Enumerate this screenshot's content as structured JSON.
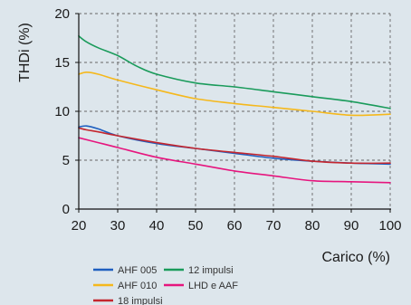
{
  "chart_data": {
    "type": "line",
    "xlabel": "Carico (%)",
    "ylabel": "THDi (%)",
    "xlim": [
      20,
      100
    ],
    "ylim": [
      0,
      20
    ],
    "xticks": [
      "20",
      "30",
      "40",
      "50",
      "60",
      "70",
      "80",
      "90",
      "100"
    ],
    "yticks": [
      "0",
      "5",
      "10",
      "15",
      "20"
    ],
    "grid": true,
    "legend_position": "bottom",
    "series": [
      {
        "name": "AHF 005",
        "color": "#1f5fbf",
        "x": [
          20,
          22,
          25,
          30,
          40,
          50,
          60,
          70,
          80,
          90,
          100
        ],
        "y": [
          8.4,
          8.5,
          8.2,
          7.5,
          6.7,
          6.2,
          5.7,
          5.2,
          4.9,
          4.7,
          4.6
        ]
      },
      {
        "name": "AHF 010",
        "color": "#f5b81c",
        "x": [
          20,
          22,
          25,
          30,
          40,
          50,
          60,
          70,
          80,
          90,
          100
        ],
        "y": [
          13.8,
          14.0,
          13.8,
          13.2,
          12.2,
          11.3,
          10.8,
          10.4,
          10.0,
          9.6,
          9.7
        ]
      },
      {
        "name": "18 impulsi",
        "color": "#c4262e",
        "x": [
          20,
          22,
          25,
          30,
          40,
          50,
          60,
          70,
          80,
          90,
          100
        ],
        "y": [
          8.3,
          8.1,
          7.9,
          7.5,
          6.8,
          6.2,
          5.8,
          5.4,
          4.9,
          4.7,
          4.7
        ]
      },
      {
        "name": "12 impulsi",
        "color": "#1a9b5b",
        "x": [
          20,
          22,
          25,
          30,
          35,
          40,
          50,
          60,
          70,
          80,
          90,
          100
        ],
        "y": [
          17.7,
          17.1,
          16.5,
          15.7,
          14.6,
          13.8,
          12.9,
          12.5,
          12.0,
          11.5,
          11.0,
          10.3
        ]
      },
      {
        "name": "LHD e AAF",
        "color": "#e6157e",
        "x": [
          20,
          25,
          30,
          40,
          50,
          60,
          70,
          80,
          90,
          100
        ],
        "y": [
          7.3,
          6.8,
          6.3,
          5.3,
          4.6,
          3.9,
          3.4,
          2.9,
          2.8,
          2.7
        ]
      }
    ],
    "legend_order": [
      "AHF 005",
      "12 impulsi",
      "AHF 010",
      "LHD e AAF",
      "18 impulsi"
    ]
  }
}
